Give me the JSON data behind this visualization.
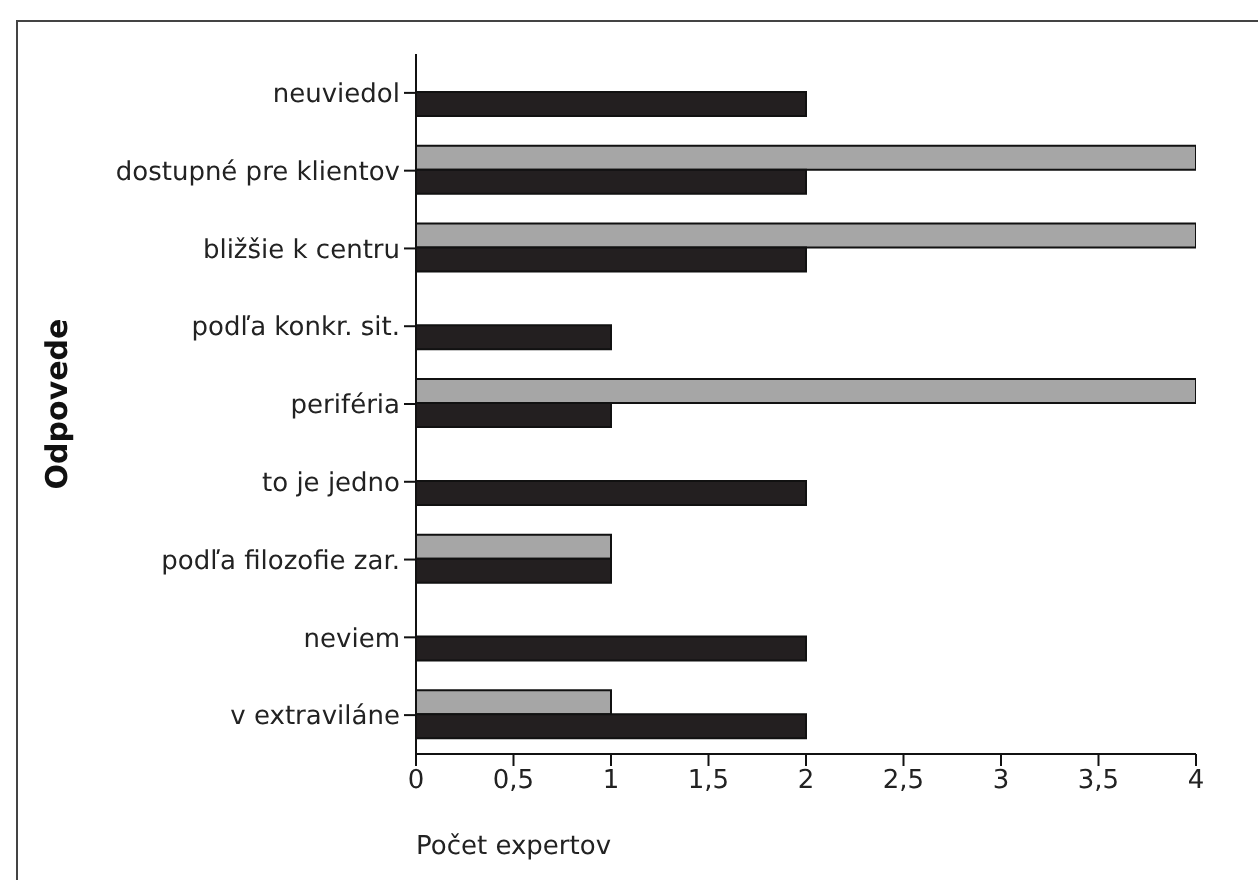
{
  "chart_data": {
    "type": "bar",
    "orientation": "horizontal",
    "xlabel": "Počet expertov",
    "ylabel": "Odpovede",
    "categories": [
      "neuviedol",
      "dostupné pre klientov",
      "bližšie k centru",
      "podľa konkr. sit.",
      "periféria",
      "to je jedno",
      "podľa filozofie zar.",
      "neviem",
      "v extraviláne"
    ],
    "series": [
      {
        "color": "#a6a6a6",
        "values": [
          0,
          4,
          4,
          0,
          4,
          0,
          1,
          0,
          1
        ]
      },
      {
        "color": "#231f20",
        "values": [
          2,
          2,
          2,
          1,
          1,
          2,
          1,
          2,
          2
        ]
      }
    ],
    "xlim": [
      0,
      4
    ],
    "xticks": [
      0,
      {
        "value": 0.5,
        "label": "0,5"
      },
      1,
      {
        "value": 1.5,
        "label": "1,5"
      },
      2,
      {
        "value": 2.5,
        "label": "2,5"
      },
      3,
      {
        "value": 3.5,
        "label": "3,5"
      },
      4
    ],
    "grid": false,
    "legend": false
  }
}
